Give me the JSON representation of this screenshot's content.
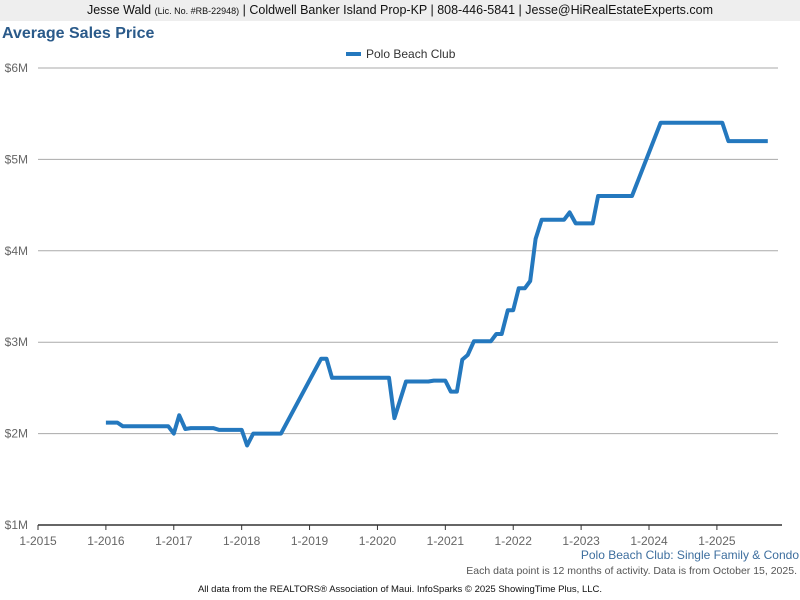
{
  "header": {
    "agent_name": "Jesse Wald",
    "license": "(Lic. No. #RB-22948)",
    "details": "| Coldwell Banker Island Prop-KP | 808-446-5841 | Jesse@HiRealEstateExperts.com"
  },
  "footnotes": {
    "series_desc": "Polo Beach Club: Single Family & Condo",
    "activity_note": "Each data point is 12 months of activity. Data is from October 15, 2025.",
    "credit": "All data from the REALTORS® Association of Maui. InfoSparks © 2025 ShowingTime Plus, LLC."
  },
  "chart_data": {
    "type": "line",
    "title": "Average Sales Price",
    "xlabel": "",
    "ylabel": "",
    "x_tick_labels": [
      "1-2015",
      "1-2016",
      "1-2017",
      "1-2018",
      "1-2019",
      "1-2020",
      "1-2021",
      "1-2022",
      "1-2023",
      "1-2024",
      "1-2025"
    ],
    "y_tick_labels": [
      "$1M",
      "$2M",
      "$3M",
      "$4M",
      "$5M",
      "$6M"
    ],
    "xlim": [
      2015.0,
      2025.9
    ],
    "ylim": [
      1000000,
      6000000
    ],
    "grid": true,
    "legend_position": "top-center",
    "series": [
      {
        "name": "Polo Beach Club",
        "color": "#2478be",
        "points": [
          [
            2016.0,
            2120000
          ],
          [
            2016.17,
            2120000
          ],
          [
            2016.25,
            2080000
          ],
          [
            2016.42,
            2080000
          ],
          [
            2016.67,
            2080000
          ],
          [
            2016.92,
            2080000
          ],
          [
            2017.0,
            2000000
          ],
          [
            2017.08,
            2200000
          ],
          [
            2017.17,
            2050000
          ],
          [
            2017.25,
            2060000
          ],
          [
            2017.58,
            2060000
          ],
          [
            2017.67,
            2040000
          ],
          [
            2018.0,
            2040000
          ],
          [
            2018.08,
            1870000
          ],
          [
            2018.17,
            2000000
          ],
          [
            2018.58,
            2000000
          ],
          [
            2019.17,
            2820000
          ],
          [
            2019.25,
            2820000
          ],
          [
            2019.33,
            2610000
          ],
          [
            2020.17,
            2610000
          ],
          [
            2020.25,
            2170000
          ],
          [
            2020.42,
            2570000
          ],
          [
            2020.75,
            2570000
          ],
          [
            2020.83,
            2580000
          ],
          [
            2021.0,
            2580000
          ],
          [
            2021.08,
            2460000
          ],
          [
            2021.17,
            2460000
          ],
          [
            2021.25,
            2810000
          ],
          [
            2021.33,
            2860000
          ],
          [
            2021.42,
            3010000
          ],
          [
            2021.67,
            3010000
          ],
          [
            2021.75,
            3090000
          ],
          [
            2021.83,
            3090000
          ],
          [
            2021.92,
            3350000
          ],
          [
            2022.0,
            3350000
          ],
          [
            2022.08,
            3590000
          ],
          [
            2022.17,
            3590000
          ],
          [
            2022.25,
            3670000
          ],
          [
            2022.33,
            4130000
          ],
          [
            2022.42,
            4340000
          ],
          [
            2022.75,
            4340000
          ],
          [
            2022.83,
            4420000
          ],
          [
            2022.92,
            4300000
          ],
          [
            2023.17,
            4300000
          ],
          [
            2023.25,
            4600000
          ],
          [
            2023.75,
            4600000
          ],
          [
            2024.17,
            5400000
          ],
          [
            2025.08,
            5400000
          ],
          [
            2025.17,
            5200000
          ],
          [
            2025.75,
            5200000
          ]
        ]
      }
    ]
  }
}
